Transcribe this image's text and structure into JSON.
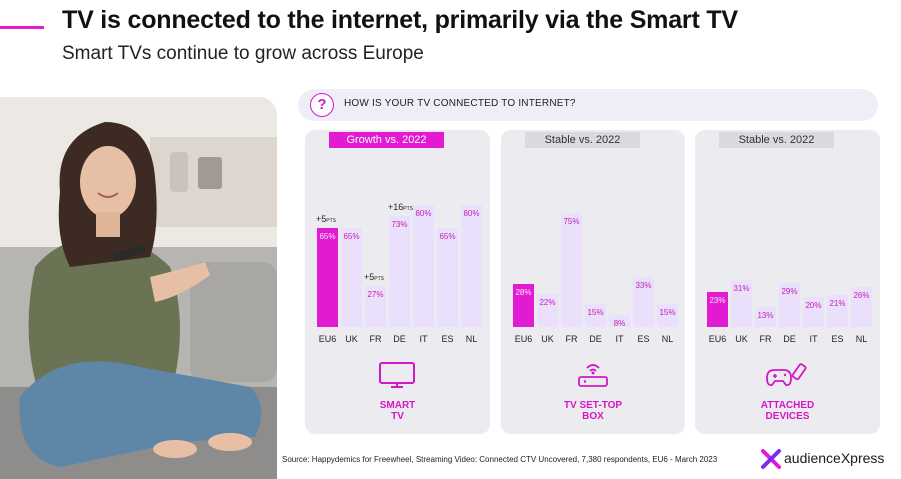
{
  "header": {
    "title": "TV is connected to the internet, primarily via the Smart TV",
    "subtitle": "Smart TVs continue to grow across Europe"
  },
  "question": {
    "icon": "question-mark-icon",
    "symbol": "?",
    "text": "HOW IS YOUR TV CONNECTED TO INTERNET?"
  },
  "colors": {
    "accent": "#e21bd3",
    "bar_light": "#ebe0fb",
    "panel_bg": "#ececf0"
  },
  "chart_data": [
    {
      "type": "bar",
      "name": "SMART\nTV",
      "icon": "tv-icon",
      "header": "Growth vs. 2022",
      "highlight_header": true,
      "categories": [
        "EU6",
        "UK",
        "FR",
        "DE",
        "IT",
        "ES",
        "NL"
      ],
      "values": [
        65,
        65,
        27,
        73,
        80,
        65,
        80
      ],
      "value_labels": [
        "65%",
        "65%",
        "27%",
        "73%",
        "80%",
        "65%",
        "80%"
      ],
      "highlight_index": 0,
      "ylim": [
        0,
        100
      ],
      "annotations": [
        {
          "category": "EU6",
          "value": "+5",
          "unit": "PTS"
        },
        {
          "category": "FR",
          "value": "+5",
          "unit": "PTS"
        },
        {
          "category": "DE",
          "value": "+16",
          "unit": "PTS"
        }
      ]
    },
    {
      "type": "bar",
      "name": "TV SET-TOP\nBOX",
      "icon": "set-top-box-icon",
      "header": "Stable vs. 2022",
      "highlight_header": false,
      "categories": [
        "EU6",
        "UK",
        "FR",
        "DE",
        "IT",
        "ES",
        "NL"
      ],
      "values": [
        28,
        22,
        75,
        15,
        8,
        33,
        15
      ],
      "value_labels": [
        "28%",
        "22%",
        "75%",
        "15%",
        "8%",
        "33%",
        "15%"
      ],
      "highlight_index": 0,
      "ylim": [
        0,
        100
      ],
      "annotations": []
    },
    {
      "type": "bar",
      "name": "ATTACHED\nDEVICES",
      "icon": "gamepad-usb-icon",
      "header": "Stable vs. 2022",
      "highlight_header": false,
      "categories": [
        "EU6",
        "UK",
        "FR",
        "DE",
        "IT",
        "ES",
        "NL"
      ],
      "values": [
        23,
        31,
        13,
        29,
        20,
        21,
        26
      ],
      "value_labels": [
        "23%",
        "31%",
        "13%",
        "29%",
        "20%",
        "21%",
        "26%"
      ],
      "highlight_index": 0,
      "ylim": [
        0,
        100
      ],
      "annotations": []
    }
  ],
  "footer": {
    "source": "Source: Happydemics for Freewheel, Streaming Video: Connected CTV Uncovered, 7,380 respondents, EU6 - March 2023",
    "logo_text": "audienceXpress"
  }
}
